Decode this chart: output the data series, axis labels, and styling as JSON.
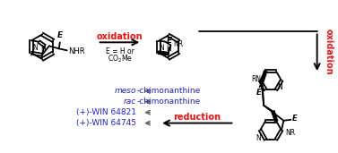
{
  "background_color": "#ffffff",
  "red_color": "#ee1111",
  "blue_color": "#2222cc",
  "black_color": "#000000",
  "gray_color": "#666666",
  "figsize": [
    3.77,
    1.71
  ],
  "dpi": 100,
  "oxidation_label_1": "oxidation",
  "oxidation_label_2": "oxidation",
  "reduction_label": "reduction",
  "e_eq": "E = H or",
  "co2me": "CO",
  "products": [
    "meso-chimonanthine",
    "rac-chimonanthine",
    "(+)-WIN 64821",
    "(+)-WIN 64745"
  ]
}
